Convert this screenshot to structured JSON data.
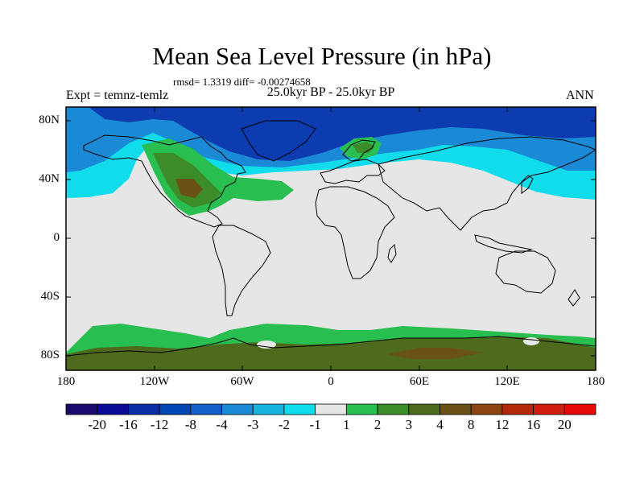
{
  "title": "Mean Sea Level Pressure (in hPa)",
  "stats": "rmsd= 1.3319 diff= -0.00274658",
  "experiment": "Expt = temnz-temlz",
  "period": "25.0kyr BP - 25.0kyr BP",
  "season": "ANN",
  "axes": {
    "y_ticks": [
      "80N",
      "40N",
      "0",
      "40S",
      "80S"
    ],
    "x_ticks": [
      "180",
      "120W",
      "60W",
      "0",
      "60E",
      "120E",
      "180"
    ]
  },
  "colorbar": {
    "labels": [
      "-20",
      "-16",
      "-12",
      "-8",
      "-4",
      "-3",
      "-2",
      "-1",
      "1",
      "2",
      "3",
      "4",
      "8",
      "12",
      "16",
      "20"
    ],
    "colors": [
      "#1a0a6e",
      "#0a0a96",
      "#0c2fa8",
      "#0046b4",
      "#1060c8",
      "#1a8ad6",
      "#18b4e0",
      "#10dcec",
      "#e6e6e6",
      "#28be50",
      "#3c8c2a",
      "#4e6a1c",
      "#6a5216",
      "#8c4410",
      "#b4280c",
      "#d21e0e",
      "#e60a0a"
    ]
  },
  "map_colors": {
    "background": "#e6e6e6",
    "ocean_blue_dark": "#0c3cb0",
    "ocean_blue_mid": "#1a8ad6",
    "ocean_cyan": "#10dcec",
    "green_light": "#28be50",
    "green_mid": "#3c8c2a",
    "olive": "#4e6a1c",
    "brown": "#6a5216",
    "coastline": "#000000"
  }
}
